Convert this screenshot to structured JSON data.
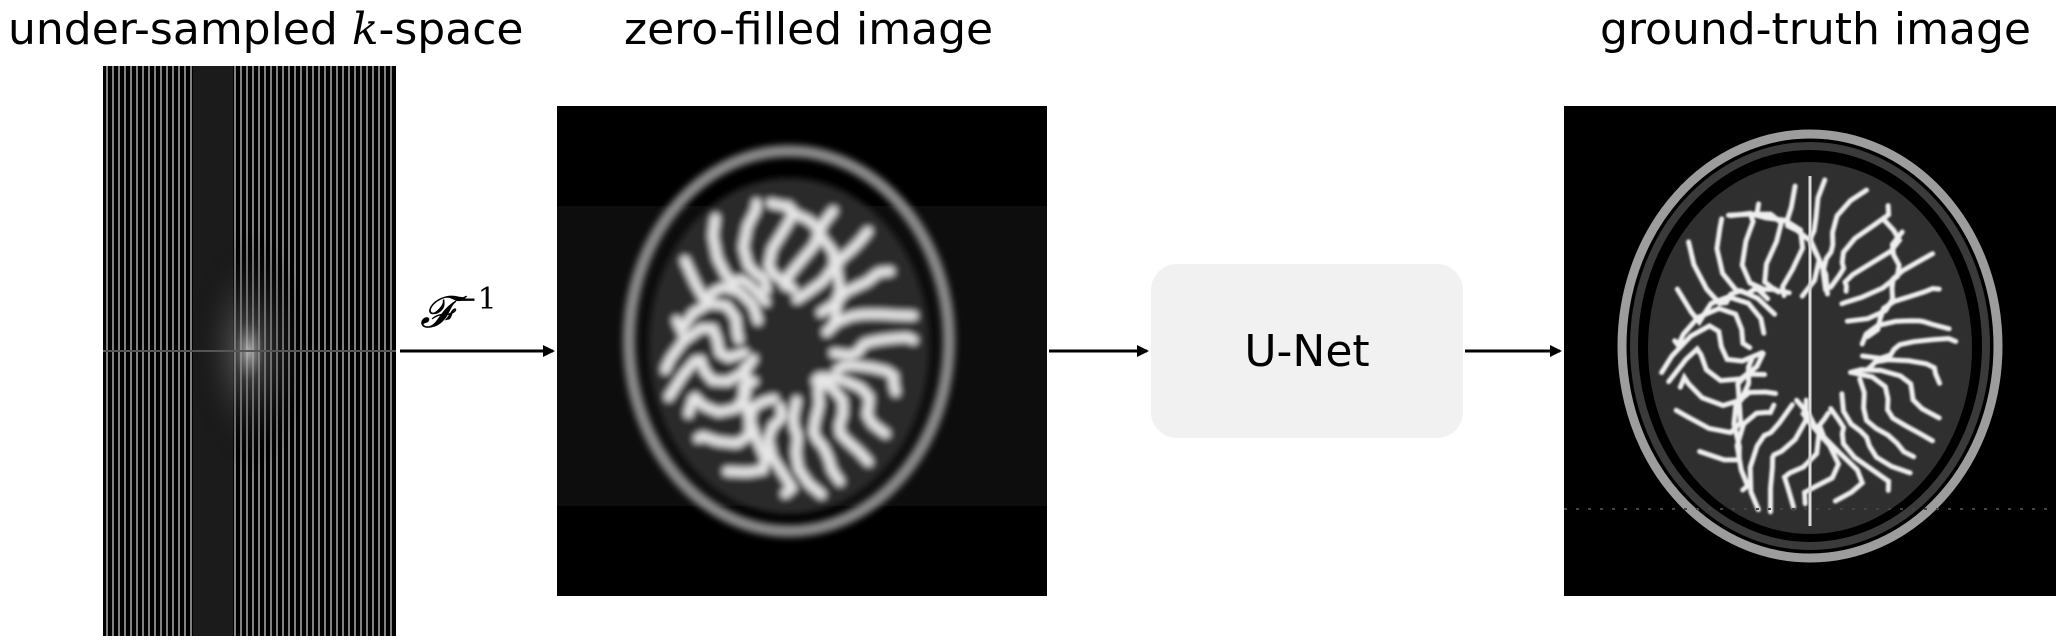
{
  "labels": {
    "kspace_prefix": "under-sampled ",
    "kspace_k": "k",
    "kspace_suffix": "-space",
    "zero_filled": "zero-filled image",
    "ground_truth": "ground-truth image",
    "inverse_fourier": "𝓕",
    "inverse_fourier_exp": "−1",
    "unet": "U-Net"
  }
}
